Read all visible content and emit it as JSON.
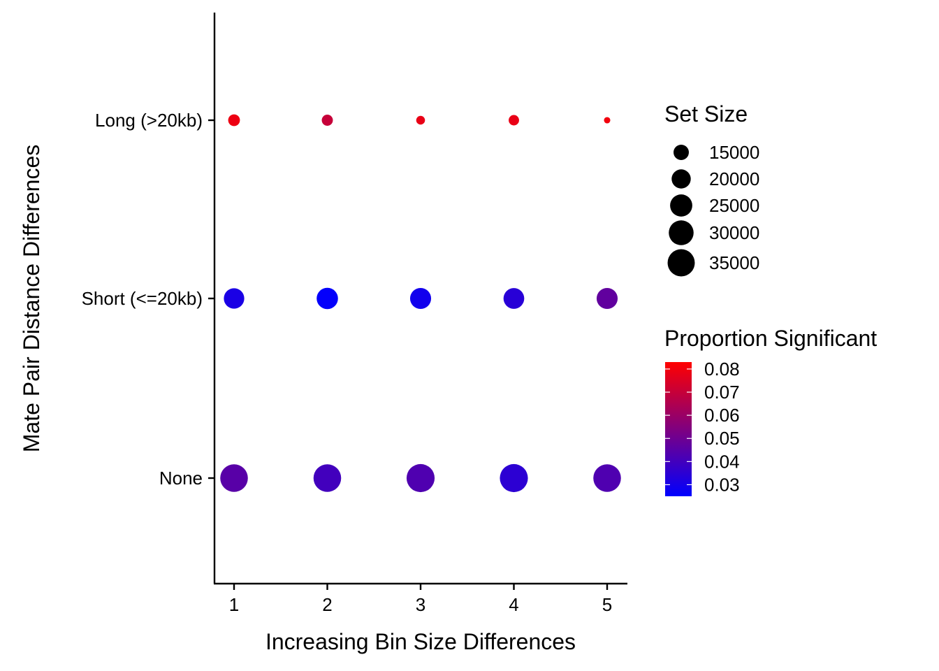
{
  "chart_data": {
    "type": "scatter",
    "xlabel": "Increasing Bin Size Differences",
    "ylabel": "Mate Pair Distance Differences",
    "x_ticks": [
      1,
      2,
      3,
      4,
      5
    ],
    "y_categories": [
      "None",
      "Short (<=20kb)",
      "Long (>20kb)"
    ],
    "xlim": [
      0.8,
      5.2
    ],
    "grid": false,
    "points": [
      {
        "x": 1,
        "y": "Long (>20kb)",
        "set_size": 11500,
        "proportion": 0.079
      },
      {
        "x": 2,
        "y": "Long (>20kb)",
        "set_size": 11000,
        "proportion": 0.07
      },
      {
        "x": 3,
        "y": "Long (>20kb)",
        "set_size": 9500,
        "proportion": 0.078
      },
      {
        "x": 4,
        "y": "Long (>20kb)",
        "set_size": 10500,
        "proportion": 0.078
      },
      {
        "x": 5,
        "y": "Long (>20kb)",
        "set_size": 8500,
        "proportion": 0.08
      },
      {
        "x": 1,
        "y": "Short (<=20kb)",
        "set_size": 22000,
        "proportion": 0.031
      },
      {
        "x": 2,
        "y": "Short (<=20kb)",
        "set_size": 23500,
        "proportion": 0.026
      },
      {
        "x": 3,
        "y": "Short (<=20kb)",
        "set_size": 23000,
        "proportion": 0.029
      },
      {
        "x": 4,
        "y": "Short (<=20kb)",
        "set_size": 22500,
        "proportion": 0.034
      },
      {
        "x": 5,
        "y": "Short (<=20kb)",
        "set_size": 23000,
        "proportion": 0.047
      },
      {
        "x": 1,
        "y": "None",
        "set_size": 36000,
        "proportion": 0.045
      },
      {
        "x": 2,
        "y": "None",
        "set_size": 36000,
        "proportion": 0.04
      },
      {
        "x": 3,
        "y": "None",
        "set_size": 37000,
        "proportion": 0.043
      },
      {
        "x": 4,
        "y": "None",
        "set_size": 37000,
        "proportion": 0.035
      },
      {
        "x": 5,
        "y": "None",
        "set_size": 36000,
        "proportion": 0.043
      }
    ],
    "size_legend": {
      "title": "Set Size",
      "values": [
        15000,
        20000,
        25000,
        30000,
        35000
      ]
    },
    "color_legend": {
      "title": "Proportion Significant",
      "min": 0.025,
      "max": 0.083,
      "ticks": [
        0.08,
        0.07,
        0.06,
        0.05,
        0.04,
        0.03
      ],
      "low_color": "#0000ff",
      "high_color": "#ff0000"
    },
    "legend_position": "right"
  }
}
